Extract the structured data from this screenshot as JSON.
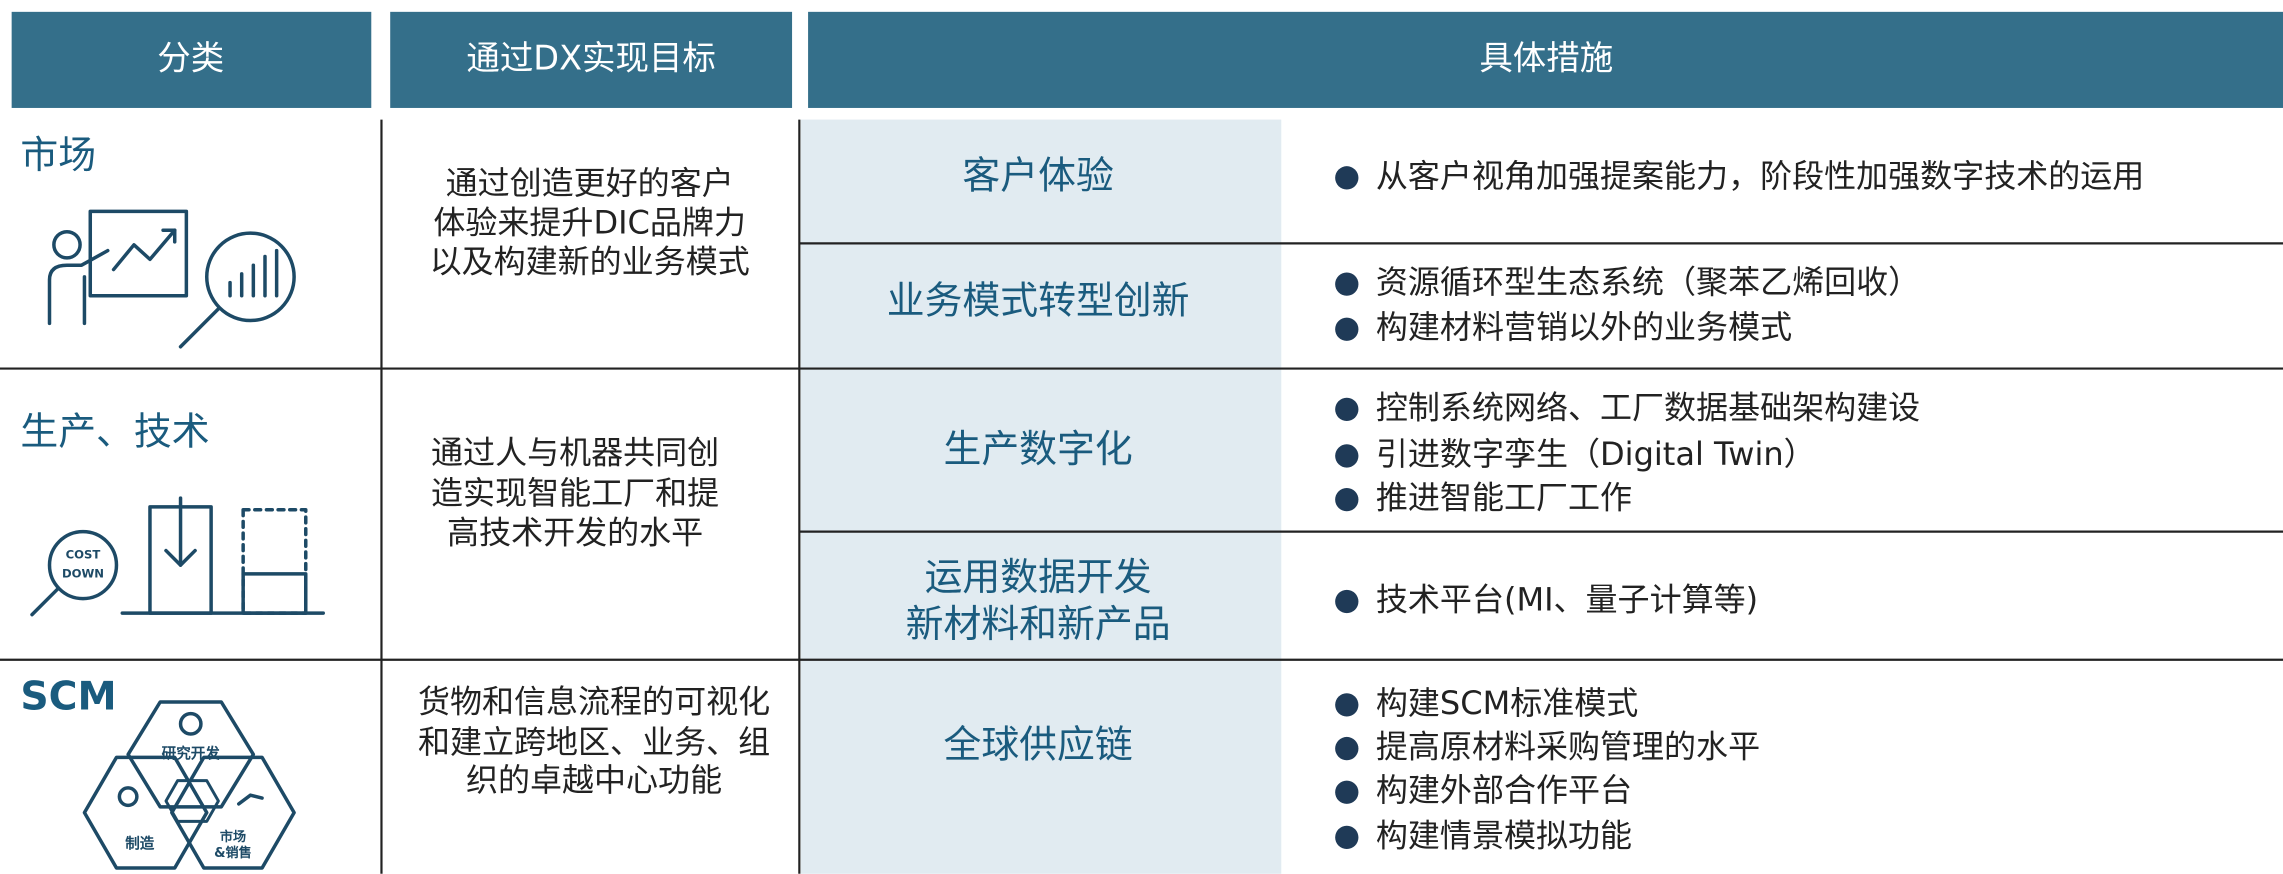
{
  "header": {
    "col1": "分类",
    "col2": "通过DX实现目标",
    "col3": "具体措施"
  },
  "rows": [
    {
      "category": "市场",
      "goal": [
        "通过创造更好的客户",
        "体验来提升DIC品牌力",
        "以及构建新的业务模式"
      ],
      "measures": [
        {
          "name": [
            "客户体验"
          ],
          "items": [
            "从客户视角加强提案能力，阶段性加强数字技术的运用"
          ]
        },
        {
          "name": [
            "业务模式转型创新"
          ],
          "items": [
            "资源循环型生态系统（聚苯乙烯回收）",
            "构建材料营销以外的业务模式"
          ]
        }
      ]
    },
    {
      "category": "生产、技术",
      "goal": [
        "通过人与机器共同创",
        "造实现智能工厂和提",
        "高技术开发的水平"
      ],
      "icon_labels": [
        "COST",
        "DOWN"
      ],
      "measures": [
        {
          "name": [
            "生产数字化"
          ],
          "items": [
            "控制系统网络、工厂数据基础架构建设",
            "引进数字孪生（Digital Twin）",
            "推进智能工厂工作"
          ]
        },
        {
          "name": [
            "运用数据开发",
            "新材料和新产品"
          ],
          "items": [
            "技术平台(MI、量子计算等)"
          ]
        }
      ]
    },
    {
      "category": "SCM",
      "goal": [
        "货物和信息流程的可视化",
        "和建立跨地区、业务、组",
        "织的卓越中心功能"
      ],
      "icon_labels": [
        "研究开发",
        "制造",
        "市场",
        "&销售"
      ],
      "measures": [
        {
          "name": [
            "全球供应链"
          ],
          "items": [
            "构建SCM标准模式",
            "提高原材料采购管理的水平",
            "构建外部合作平台",
            "构建情景模拟功能"
          ]
        }
      ]
    }
  ]
}
